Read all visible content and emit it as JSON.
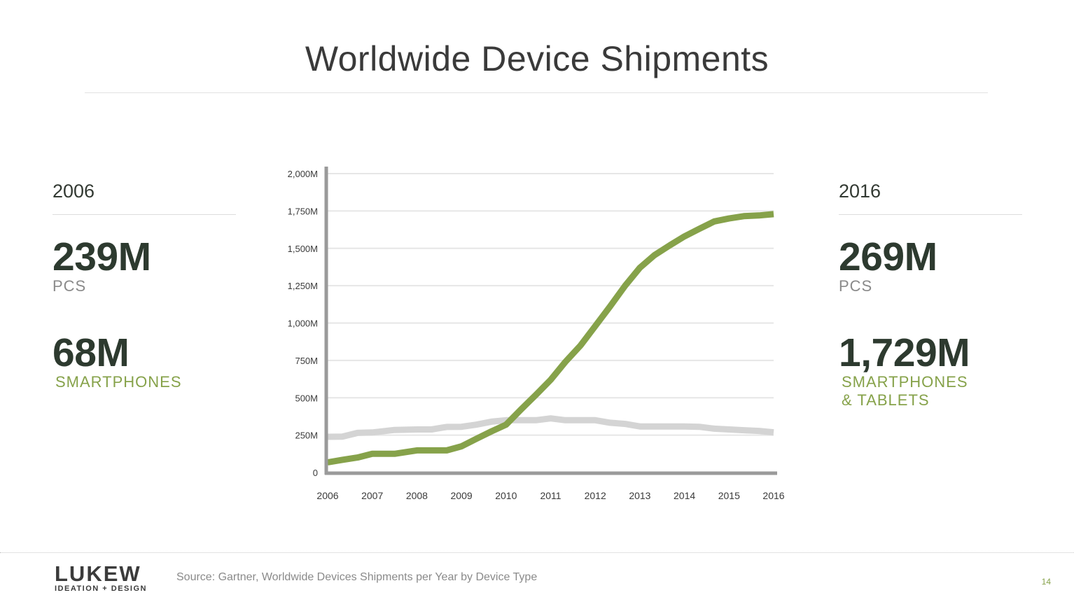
{
  "slide": {
    "title": "Worldwide Device Shipments",
    "page_number": "14"
  },
  "left_panel": {
    "year": "2006",
    "stat1_value": "239M",
    "stat1_label": "PCS",
    "stat2_value": "68M",
    "stat2_label": "SMARTPHONES"
  },
  "right_panel": {
    "year": "2016",
    "stat1_value": "269M",
    "stat1_label": "PCS",
    "stat2_value": "1,729M",
    "stat2_label_line1": "SMARTPHONES",
    "stat2_label_line2": "& TABLETS"
  },
  "footer": {
    "logo_text": "LUKEW",
    "logo_subtext": "IDEATION + DESIGN",
    "source": "Source: Gartner, Worldwide Devices Shipments per Year by Device Type"
  },
  "colors": {
    "accent_green": "#86a24a",
    "pc_gray": "#d4d4d4",
    "axis": "#9a9a9a",
    "grid": "#e6e6e6"
  },
  "chart_data": {
    "type": "line",
    "title": "",
    "xlabel": "",
    "ylabel": "",
    "ylim": [
      0,
      2000
    ],
    "xlim": [
      2006,
      2016
    ],
    "y_ticks": [
      0,
      250,
      500,
      750,
      1000,
      1250,
      1500,
      1750,
      2000
    ],
    "y_tick_labels": [
      "0",
      "250M",
      "500M",
      "750M",
      "1,000M",
      "1,250M",
      "1,500M",
      "1,750M",
      "2,000M"
    ],
    "x_ticks": [
      2006,
      2007,
      2008,
      2009,
      2010,
      2011,
      2012,
      2013,
      2014,
      2015,
      2016
    ],
    "x_tick_labels": [
      "2006",
      "2007",
      "2008",
      "2009",
      "2010",
      "2011",
      "2012",
      "2013",
      "2014",
      "2015",
      "2016"
    ],
    "grid": true,
    "legend": "none",
    "series": [
      {
        "key": "pcs",
        "color": "#d4d4d4",
        "x": [
          2006,
          2006.33,
          2006.67,
          2007,
          2007.5,
          2008,
          2008.33,
          2008.67,
          2009,
          2009.33,
          2009.67,
          2010,
          2010.33,
          2010.67,
          2011,
          2011.33,
          2011.67,
          2012,
          2012.33,
          2012.67,
          2013,
          2013.33,
          2013.67,
          2014,
          2014.33,
          2014.67,
          2015,
          2015.33,
          2015.67,
          2016
        ],
        "y": [
          239,
          240,
          265,
          268,
          285,
          288,
          288,
          305,
          306,
          320,
          340,
          350,
          350,
          350,
          362,
          350,
          350,
          350,
          333,
          325,
          308,
          308,
          308,
          308,
          306,
          293,
          288,
          283,
          278,
          269
        ]
      },
      {
        "key": "smartphones_tablets",
        "color": "#86a24a",
        "x": [
          2006,
          2006.33,
          2006.67,
          2007,
          2007.5,
          2008,
          2008.33,
          2008.67,
          2009,
          2009.33,
          2009.67,
          2010,
          2010.33,
          2010.67,
          2011,
          2011.33,
          2011.67,
          2012,
          2012.33,
          2012.67,
          2013,
          2013.33,
          2013.67,
          2014,
          2014.33,
          2014.67,
          2015,
          2015.33,
          2015.67,
          2016
        ],
        "y": [
          68,
          85,
          100,
          125,
          125,
          148,
          148,
          148,
          175,
          225,
          275,
          320,
          420,
          520,
          620,
          740,
          850,
          980,
          1110,
          1250,
          1370,
          1455,
          1520,
          1580,
          1630,
          1680,
          1700,
          1715,
          1720,
          1729
        ]
      }
    ]
  }
}
